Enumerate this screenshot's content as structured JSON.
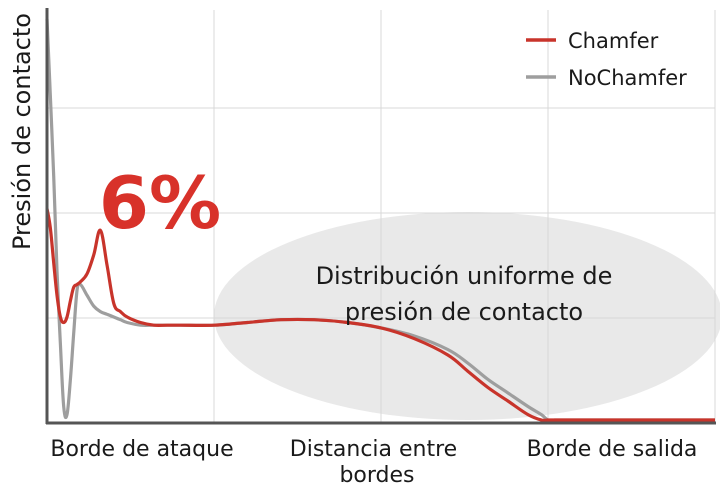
{
  "chart_data": {
    "type": "line",
    "title": "",
    "ylabel": "Presión de contacto",
    "x_ticks": [
      "Borde de ataque",
      "Distancia entre bordes",
      "Borde de salida"
    ],
    "x": [
      0,
      0.005,
      0.01,
      0.015,
      0.02,
      0.025,
      0.03,
      0.035,
      0.04,
      0.045,
      0.05,
      0.06,
      0.07,
      0.08,
      0.09,
      0.1,
      0.11,
      0.12,
      0.14,
      0.16,
      0.18,
      0.2,
      0.25,
      0.3,
      0.35,
      0.4,
      0.45,
      0.5,
      0.55,
      0.6,
      0.63,
      0.66,
      0.69,
      0.72,
      0.74,
      0.75,
      0.76,
      0.77,
      0.78,
      0.8,
      0.85,
      0.9,
      0.95,
      1.0
    ],
    "series": [
      {
        "name": "Chamfer",
        "color": "#c8342b",
        "values": [
          0.78,
          0.71,
          0.58,
          0.46,
          0.38,
          0.36,
          0.38,
          0.44,
          0.49,
          0.5,
          0.51,
          0.54,
          0.61,
          0.7,
          0.57,
          0.43,
          0.4,
          0.38,
          0.36,
          0.35,
          0.35,
          0.35,
          0.35,
          0.36,
          0.37,
          0.37,
          0.36,
          0.34,
          0.3,
          0.24,
          0.18,
          0.12,
          0.07,
          0.02,
          0.0,
          0.0,
          0.0,
          0.0,
          0.0,
          0.0,
          0.0,
          0.0,
          0.0,
          0.0
        ]
      },
      {
        "name": "NoChamfer",
        "color": "#9e9e9e",
        "values": [
          1.48,
          1.2,
          0.9,
          0.55,
          0.28,
          0.05,
          0.02,
          0.15,
          0.32,
          0.48,
          0.5,
          0.46,
          0.42,
          0.4,
          0.39,
          0.38,
          0.37,
          0.36,
          0.35,
          0.35,
          0.35,
          0.35,
          0.35,
          0.36,
          0.37,
          0.37,
          0.36,
          0.34,
          0.31,
          0.26,
          0.21,
          0.15,
          0.1,
          0.05,
          0.02,
          0.0,
          0.0,
          0.0,
          0.0,
          0.0,
          0.0,
          0.0,
          0.0,
          0.0
        ]
      }
    ],
    "xlim": [
      0,
      1
    ],
    "ylim": [
      0,
      1.55
    ],
    "grid": true,
    "legend": "top-right",
    "annotations": {
      "big_label": "6%",
      "ellipse_text": [
        "Distribución uniforme de",
        "presión de contacto"
      ]
    }
  }
}
